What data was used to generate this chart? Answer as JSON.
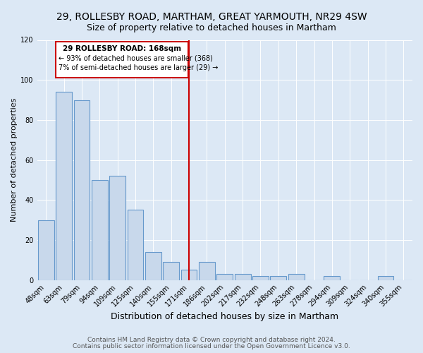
{
  "title": "29, ROLLESBY ROAD, MARTHAM, GREAT YARMOUTH, NR29 4SW",
  "subtitle": "Size of property relative to detached houses in Martham",
  "xlabel": "Distribution of detached houses by size in Martham",
  "ylabel": "Number of detached properties",
  "bin_labels": [
    "48sqm",
    "63sqm",
    "79sqm",
    "94sqm",
    "109sqm",
    "125sqm",
    "140sqm",
    "155sqm",
    "171sqm",
    "186sqm",
    "202sqm",
    "217sqm",
    "232sqm",
    "248sqm",
    "263sqm",
    "278sqm",
    "294sqm",
    "309sqm",
    "324sqm",
    "340sqm",
    "355sqm"
  ],
  "bar_values": [
    30,
    94,
    90,
    50,
    52,
    35,
    14,
    9,
    5,
    9,
    3,
    3,
    2,
    2,
    3,
    0,
    2,
    0,
    0,
    2,
    0
  ],
  "bar_color": "#c8d8eb",
  "bar_edge_color": "#6699cc",
  "vline_x_index": 8,
  "vline_color": "#cc0000",
  "annotation_title": "29 ROLLESBY ROAD: 168sqm",
  "annotation_line1": "← 93% of detached houses are smaller (368)",
  "annotation_line2": "7% of semi-detached houses are larger (29) →",
  "annotation_box_edgecolor": "#cc0000",
  "ylim": [
    0,
    120
  ],
  "yticks": [
    0,
    20,
    40,
    60,
    80,
    100,
    120
  ],
  "footer1": "Contains HM Land Registry data © Crown copyright and database right 2024.",
  "footer2": "Contains public sector information licensed under the Open Government Licence v3.0.",
  "bg_color": "#dce8f5",
  "plot_bg_color": "#dce8f5",
  "title_fontsize": 10,
  "subtitle_fontsize": 9,
  "xlabel_fontsize": 9,
  "ylabel_fontsize": 8,
  "tick_fontsize": 7,
  "footer_fontsize": 6.5
}
